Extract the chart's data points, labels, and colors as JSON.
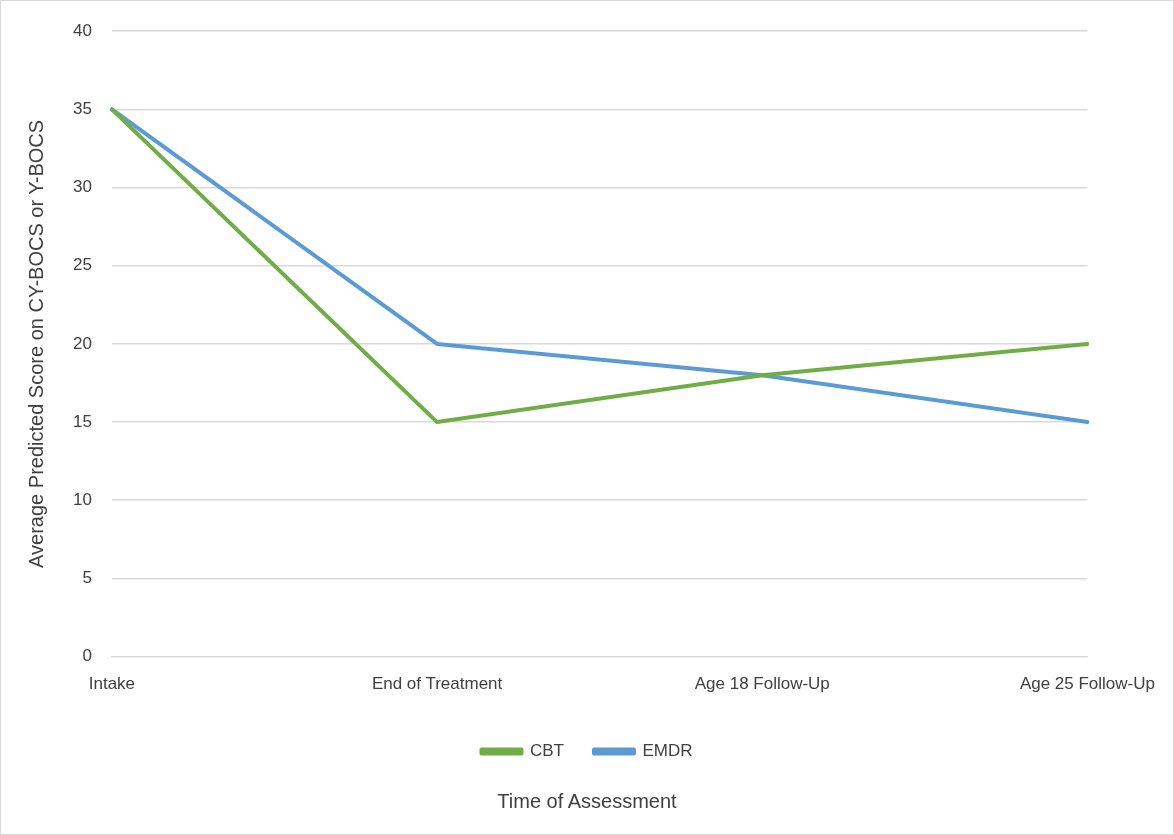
{
  "chart_data": {
    "type": "line",
    "xlabel": "Time of Assessment",
    "ylabel": "Average Predicted Score on CY-BOCS or Y-BOCS",
    "categories": [
      "Intake",
      "End of Treatment",
      "Age 18 Follow-Up",
      "Age 25 Follow-Up"
    ],
    "series": [
      {
        "name": "CBT",
        "color": "#70ad47",
        "values": [
          35,
          15,
          18,
          20
        ]
      },
      {
        "name": "EMDR",
        "color": "#5b9bd5",
        "values": [
          35,
          20,
          18,
          15
        ]
      }
    ],
    "ylim": [
      0,
      40
    ],
    "yticks": [
      0,
      5,
      10,
      15,
      20,
      25,
      30,
      35,
      40
    ],
    "grid": "y",
    "legend": "bottom",
    "marker": "none",
    "line_style": "solid"
  }
}
